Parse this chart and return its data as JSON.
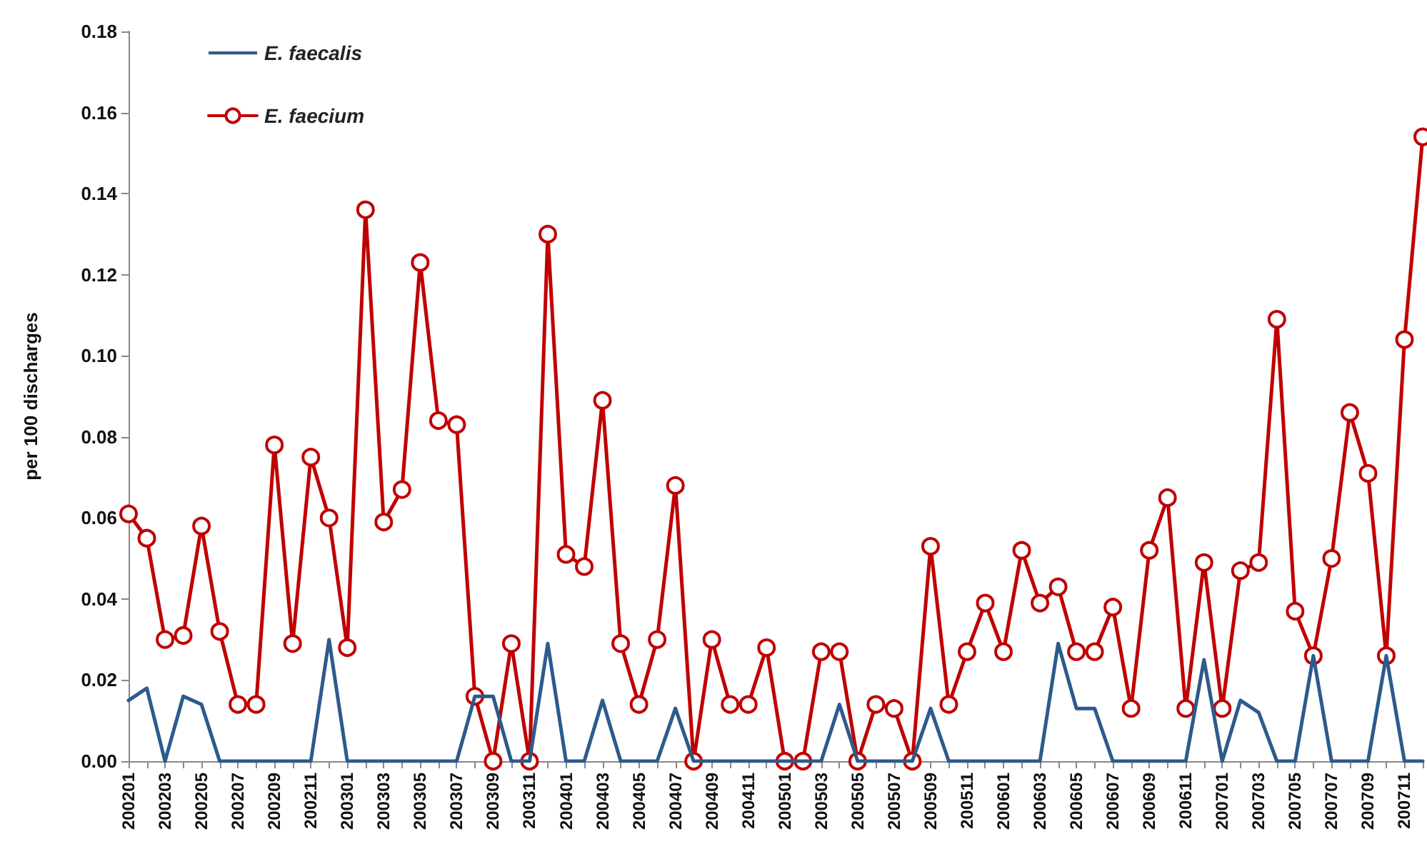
{
  "chart_data": {
    "type": "line",
    "ylabel": "per 100 discharges",
    "categories": [
      "200201",
      null,
      "200203",
      null,
      "200205",
      null,
      "200207",
      null,
      "200209",
      null,
      "200211",
      null,
      "200301",
      null,
      "200303",
      null,
      "200305",
      null,
      "200307",
      null,
      "200309",
      null,
      "200311",
      null,
      "200401",
      null,
      "200403",
      null,
      "200405",
      null,
      "200407",
      null,
      "200409",
      null,
      "200411",
      null,
      "200501",
      null,
      "200503",
      null,
      "200505",
      null,
      "200507",
      null,
      "200509",
      null,
      "200511",
      null,
      "200601",
      null,
      "200603",
      null,
      "200605",
      null,
      "200607",
      null,
      "200609",
      null,
      "200611",
      null,
      "200701",
      null,
      "200703",
      null,
      "200705",
      null,
      "200707",
      null,
      "200709",
      null,
      "200711",
      null
    ],
    "series": [
      {
        "name": "E. faecalis",
        "color": "#2e5a8c",
        "marker": "none",
        "values": [
          0.015,
          0.018,
          0,
          0.016,
          0.014,
          0,
          0,
          0,
          0,
          0,
          0,
          0.03,
          0,
          0,
          0,
          0,
          0,
          0,
          0,
          0.016,
          0.016,
          0,
          0,
          0.029,
          0,
          0,
          0.015,
          0,
          0,
          0,
          0.013,
          0,
          0,
          0,
          0,
          0,
          0,
          0,
          0,
          0.014,
          0,
          0,
          0,
          0,
          0.013,
          0,
          0,
          0,
          0,
          0,
          0,
          0.029,
          0.013,
          0.013,
          0,
          0,
          0,
          0,
          0,
          0.025,
          0,
          0.015,
          0.012,
          0,
          0,
          0.026,
          0,
          0,
          0,
          0.026,
          0,
          0
        ]
      },
      {
        "name": "E. faecium",
        "color": "#c00000",
        "marker": "circle",
        "values": [
          0.061,
          0.055,
          0.03,
          0.031,
          0.058,
          0.032,
          0.014,
          0.014,
          0.078,
          0.029,
          0.075,
          0.06,
          0.028,
          0.136,
          0.059,
          0.067,
          0.123,
          0.084,
          0.083,
          0.016,
          0,
          0.029,
          0,
          0.13,
          0.051,
          0.048,
          0.089,
          0.029,
          0.014,
          0.03,
          0.068,
          0,
          0.03,
          0.014,
          0.014,
          0.028,
          0,
          0,
          0.027,
          0.027,
          0,
          0.014,
          0.013,
          0,
          0.053,
          0.014,
          0.027,
          0.039,
          0.027,
          0.052,
          0.039,
          0.043,
          0.027,
          0.027,
          0.038,
          0.013,
          0.052,
          0.065,
          0.013,
          0.049,
          0.013,
          0.047,
          0.049,
          0.109,
          0.037,
          0.026,
          0.05,
          0.086,
          0.071,
          0.026,
          0.104,
          0.154
        ]
      }
    ],
    "ylim": [
      0,
      0.18
    ],
    "yticks": [
      {
        "value": 0,
        "label": "0.00"
      },
      {
        "value": 0.02,
        "label": "0.02"
      },
      {
        "value": 0.04,
        "label": "0.04"
      },
      {
        "value": 0.06,
        "label": "0.06"
      },
      {
        "value": 0.08,
        "label": "0.08"
      },
      {
        "value": 0.1,
        "label": "0.10"
      },
      {
        "value": 0.12,
        "label": "0.12"
      },
      {
        "value": 0.14,
        "label": "0.14"
      },
      {
        "value": 0.16,
        "label": "0.16"
      },
      {
        "value": 0.18,
        "label": "0.18"
      }
    ],
    "grid": false,
    "legend": "top left",
    "line_style": "solid"
  }
}
